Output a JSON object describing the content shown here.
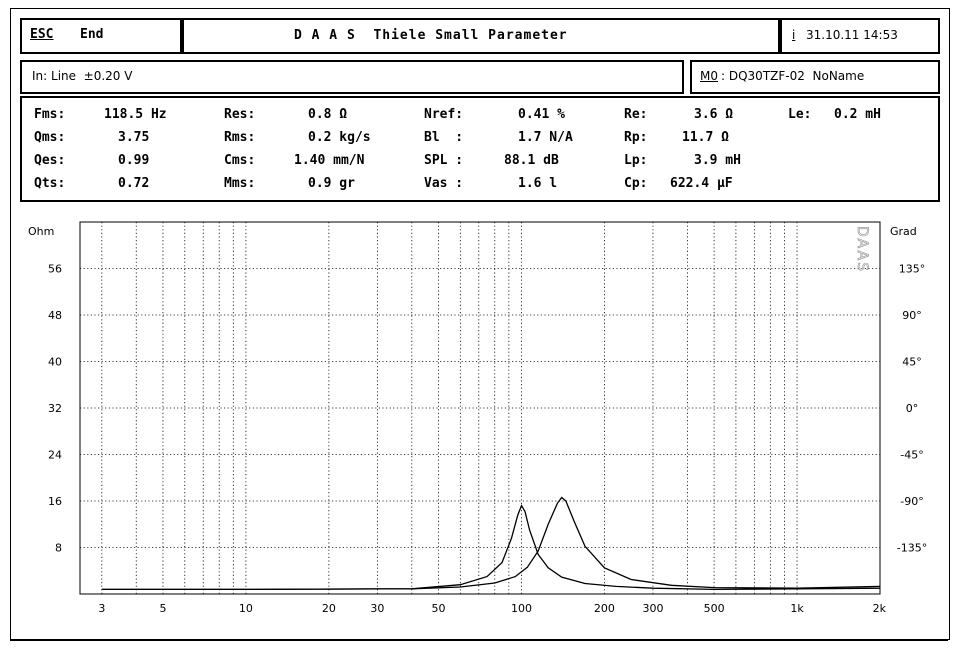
{
  "header": {
    "esc_label": "ESC",
    "end_label": "End",
    "title": "D A A S  Thiele Small Parameter",
    "info_key": "i",
    "datetime": "31.10.11 14:53"
  },
  "input_bar": {
    "input_text": "In: Line  ±0.20 V",
    "model_key": "M0",
    "model_text": ": DQ30TZF-02  NoName"
  },
  "params": [
    {
      "label": "Fms:",
      "value": "118.5 Hz"
    },
    {
      "label": "Qms:",
      "value": "3.75"
    },
    {
      "label": "Qes:",
      "value": "0.99"
    },
    {
      "label": "Qts:",
      "value": "0.72"
    },
    {
      "label": "Res:",
      "value": "0.8 Ω"
    },
    {
      "label": "Rms:",
      "value": "0.2 kg/s"
    },
    {
      "label": "Cms:",
      "value": "1.40 mm/N"
    },
    {
      "label": "Mms:",
      "value": "0.9 gr"
    },
    {
      "label": "Nref:",
      "value": "0.41 %"
    },
    {
      "label": "Bl  :",
      "value": "1.7 N/A"
    },
    {
      "label": "SPL :",
      "value": "88.1 dB"
    },
    {
      "label": "Vas :",
      "value": "1.6 l"
    },
    {
      "label": "Re:",
      "value": "3.6 Ω"
    },
    {
      "label": "Rp:",
      "value": "11.7 Ω"
    },
    {
      "label": "Lp:",
      "value": "3.9 mH"
    },
    {
      "label": "Cp:",
      "value": "622.4 µF"
    },
    {
      "label": "Le:",
      "value": "0.2 mH"
    }
  ],
  "chart_data": {
    "type": "line",
    "x_scale": "log",
    "xlim": [
      2.5,
      2000
    ],
    "ylim_left": [
      0,
      64
    ],
    "ylim_right": [
      -180,
      180
    ],
    "left_axis_title": "Ohm",
    "right_axis_title": "Grad",
    "left_ticks": [
      "56",
      "48",
      "40",
      "32",
      "24",
      "16",
      "8"
    ],
    "right_ticks": [
      "135°",
      "90°",
      "45°",
      "0°",
      "-45°",
      "-90°",
      "-135°"
    ],
    "x_ticks": [
      "3",
      "5",
      "10",
      "20",
      "30",
      "50",
      "100",
      "200",
      "300",
      "500",
      "1k",
      "2k"
    ],
    "x_tick_values": [
      3,
      5,
      10,
      20,
      30,
      50,
      100,
      200,
      300,
      500,
      1000,
      2000
    ],
    "grid": true,
    "watermark": "DAAS",
    "series": [
      {
        "x": [
          3,
          10,
          40,
          60,
          75,
          85,
          92,
          97,
          100,
          103,
          107,
          115,
          125,
          140,
          170,
          220,
          300,
          500,
          1000,
          2000
        ],
        "y": [
          0.8,
          0.8,
          0.9,
          1.6,
          3.0,
          5.4,
          9.6,
          13.6,
          15.2,
          14.2,
          11.0,
          6.8,
          4.5,
          2.9,
          1.8,
          1.3,
          1.0,
          0.8,
          0.9,
          1.0
        ]
      },
      {
        "x": [
          3,
          10,
          40,
          60,
          80,
          95,
          105,
          115,
          125,
          135,
          140,
          145,
          155,
          170,
          200,
          250,
          350,
          500,
          1000,
          2000
        ],
        "y": [
          0.8,
          0.8,
          0.9,
          1.2,
          1.9,
          3.0,
          4.6,
          7.4,
          12.0,
          15.6,
          16.6,
          16.0,
          12.6,
          8.2,
          4.5,
          2.5,
          1.5,
          1.1,
          1.0,
          1.3
        ]
      }
    ]
  }
}
